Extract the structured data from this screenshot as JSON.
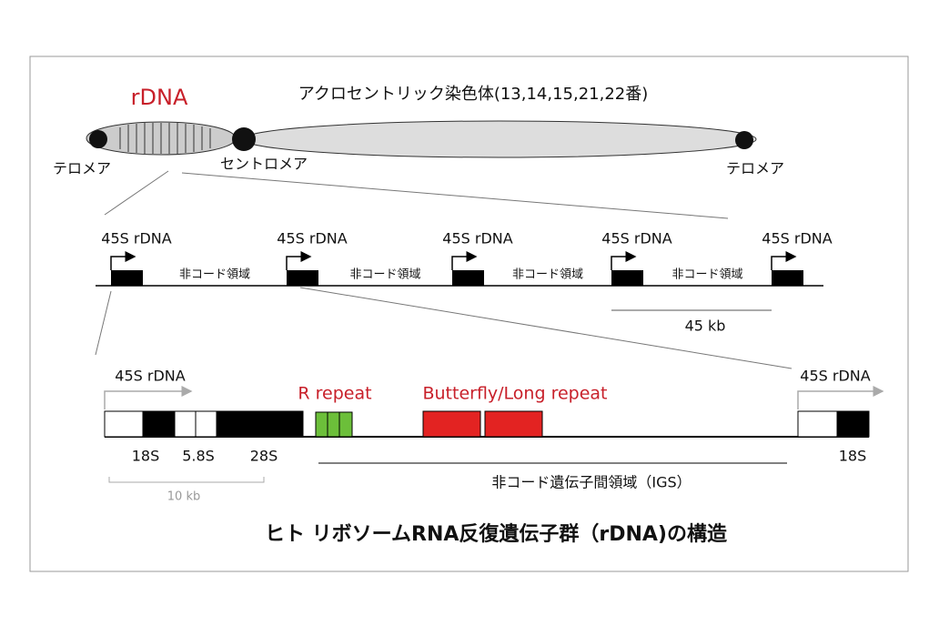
{
  "chromosome": {
    "rdna_label": "rDNA",
    "title": "アクロセントリック染色体(13,14,15,21,22番)",
    "telomere_left": "テロメア",
    "centromere": "セントロメア",
    "telomere_right": "テロメア"
  },
  "repeat_array": {
    "units": [
      "45S rDNA",
      "45S rDNA",
      "45S rDNA",
      "45S rDNA",
      "45S rDNA"
    ],
    "spacers": [
      "非コード領域",
      "非コード領域",
      "非コード領域",
      "非コード領域"
    ],
    "scale": "45 kb"
  },
  "unit_detail": {
    "unit_left": "45S rDNA",
    "unit_right": "45S rDNA",
    "r_repeat": "R repeat",
    "butterfly_repeat": "Butterfly/Long repeat",
    "genes": [
      "18S",
      "5.8S",
      "28S"
    ],
    "gene_right": "18S",
    "igs": "非コード遺伝子間領域（IGS）",
    "scale": "10 kb"
  },
  "caption": "ヒト リボソームRNA反復遺伝子群（rDNA)の構造"
}
